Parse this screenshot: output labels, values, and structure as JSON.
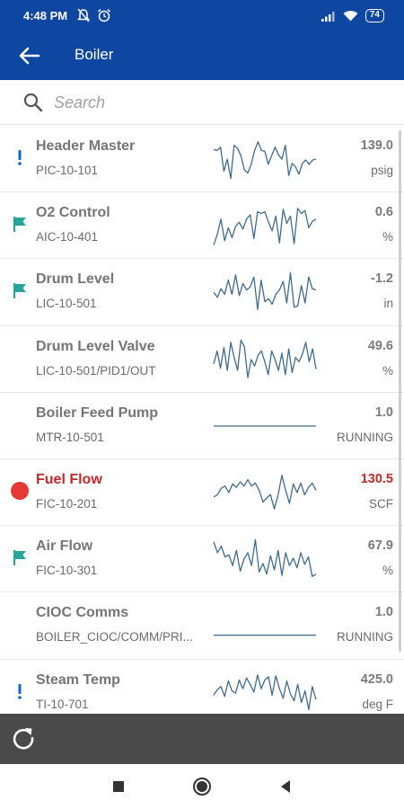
{
  "status_bar": {
    "time": "4:48 PM",
    "battery": "74"
  },
  "app_bar": {
    "title": "Boiler",
    "back_icon": "arrow-back-icon"
  },
  "search": {
    "placeholder": "Search",
    "value": ""
  },
  "rows": [
    {
      "name": "Header Master",
      "tag": "PIC-10-101",
      "value": "139.0",
      "unit": "psig",
      "indicator": "exclamation",
      "spark": [
        0.28,
        0.3,
        0.22,
        0.78,
        0.5,
        0.95,
        0.18,
        0.25,
        0.42,
        0.75,
        0.82,
        0.62,
        0.3,
        0.1,
        0.3,
        0.32,
        0.62,
        0.42,
        0.22,
        0.4,
        0.5,
        0.18,
        0.88,
        0.6,
        0.68,
        0.85,
        0.6,
        0.52,
        0.62,
        0.52,
        0.5
      ]
    },
    {
      "name": "O2 Control",
      "tag": "AIC-10-401",
      "value": "0.6",
      "unit": "%",
      "indicator": "flag",
      "spark": [
        0.95,
        0.7,
        0.35,
        0.85,
        0.55,
        0.78,
        0.52,
        0.42,
        0.58,
        0.35,
        0.25,
        0.8,
        0.18,
        0.22,
        0.18,
        0.42,
        0.62,
        0.28,
        0.9,
        0.12,
        0.45,
        0.28,
        0.92,
        0.1,
        0.22,
        0.15,
        0.55,
        0.4,
        0.35
      ]
    },
    {
      "name": "Drum Level",
      "tag": "LIC-10-501",
      "value": "-1.2",
      "unit": "in",
      "indicator": "flag",
      "spark": [
        0.5,
        0.62,
        0.42,
        0.55,
        0.22,
        0.55,
        0.1,
        0.58,
        0.3,
        0.45,
        0.38,
        0.15,
        0.9,
        0.22,
        0.72,
        0.65,
        0.78,
        0.55,
        0.45,
        0.25,
        0.75,
        0.05,
        0.85,
        0.82,
        0.35,
        0.75,
        0.15,
        0.42,
        0.45
      ]
    },
    {
      "name": "Drum Level Valve",
      "tag": "LIC-10-501/PID1/OUT",
      "value": "49.6",
      "unit": "%",
      "indicator": "none",
      "spark": [
        0.6,
        0.3,
        0.7,
        0.22,
        0.75,
        0.1,
        0.45,
        0.75,
        0.05,
        0.2,
        0.92,
        0.5,
        0.65,
        0.4,
        0.3,
        0.55,
        0.85,
        0.3,
        0.5,
        0.75,
        0.35,
        0.85,
        0.25,
        0.8,
        0.45,
        0.55,
        0.38,
        0.1,
        0.55,
        0.25,
        0.72
      ]
    },
    {
      "name": "Boiler Feed Pump",
      "tag": "MTR-10-501",
      "value": "1.0",
      "unit": "RUNNING",
      "indicator": "none",
      "spark": [
        0.5,
        0.5
      ]
    },
    {
      "name": "Fuel Flow",
      "tag": "FIC-10-201",
      "value": "130.5",
      "unit": "SCF",
      "indicator": "alarm-dot",
      "spark": [
        0.6,
        0.55,
        0.4,
        0.35,
        0.5,
        0.3,
        0.38,
        0.25,
        0.35,
        0.2,
        0.35,
        0.28,
        0.45,
        0.72,
        0.62,
        0.55,
        0.88,
        0.55,
        0.1,
        0.45,
        0.75,
        0.3,
        0.5,
        0.28,
        0.55,
        0.38,
        0.28,
        0.45
      ]
    },
    {
      "name": "Air Flow",
      "tag": "FIC-10-301",
      "value": "67.9",
      "unit": "%",
      "indicator": "flag",
      "spark": [
        0.1,
        0.35,
        0.2,
        0.45,
        0.4,
        0.65,
        0.3,
        0.78,
        0.5,
        0.35,
        0.65,
        0.05,
        0.8,
        0.6,
        0.85,
        0.42,
        0.75,
        0.3,
        0.88,
        0.35,
        0.65,
        0.48,
        0.7,
        0.35,
        0.62,
        0.45,
        0.9,
        0.85
      ]
    },
    {
      "name": "CIOC Comms",
      "tag": "BOILER_CIOC/COMM/PRI...",
      "value": "1.0",
      "unit": "RUNNING",
      "indicator": "none",
      "spark": [
        0.72,
        0.72
      ]
    },
    {
      "name": "Steam Temp",
      "tag": "TI-10-701",
      "value": "425.0",
      "unit": "deg F",
      "indicator": "exclamation",
      "spark": [
        0.55,
        0.42,
        0.35,
        0.58,
        0.22,
        0.45,
        0.5,
        0.2,
        0.4,
        0.15,
        0.3,
        0.48,
        0.08,
        0.4,
        0.2,
        0.12,
        0.55,
        0.1,
        0.4,
        0.62,
        0.22,
        0.52,
        0.68,
        0.3,
        0.72,
        0.45,
        0.88,
        0.35,
        0.65
      ]
    }
  ],
  "colors": {
    "primary": "#0d47a1",
    "flag": "#26a69a",
    "exclamation": "#1565c0",
    "alarm": "#e53935",
    "alarm_text": "#c62828",
    "sparkline": "#3f6b8c",
    "bottom_bar": "#4a4a4a"
  },
  "bottom_bar": {
    "refresh_icon": "refresh-icon"
  },
  "nav_bar": {
    "recents_icon": "square-icon",
    "home_icon": "circle-home-icon",
    "back_icon": "triangle-back-icon"
  }
}
